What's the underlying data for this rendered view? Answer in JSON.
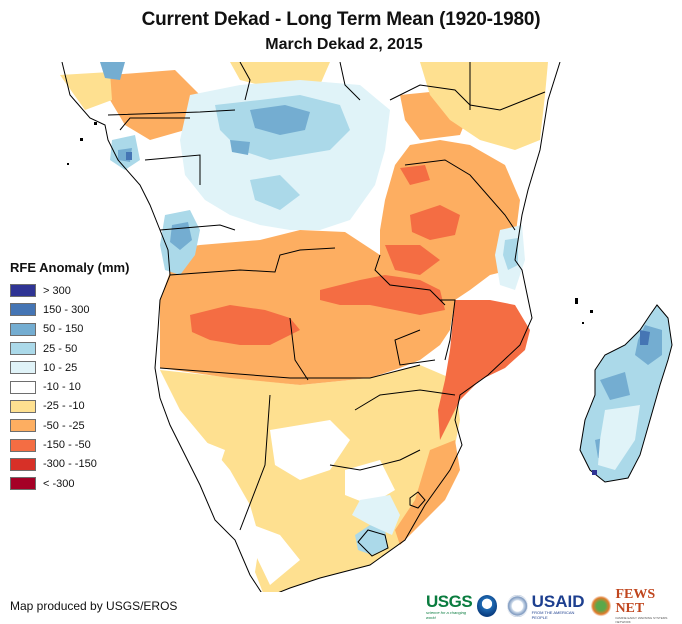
{
  "header": {
    "title": "Current Dekad - Long Term Mean (1920-1980)",
    "subtitle": "March Dekad 2, 2015"
  },
  "legend": {
    "title": "RFE Anomaly (mm)",
    "items": [
      {
        "label": "> 300",
        "color": "#2f3494"
      },
      {
        "label": "150 - 300",
        "color": "#4575b4"
      },
      {
        "label": "50 - 150",
        "color": "#74add1"
      },
      {
        "label": "25 - 50",
        "color": "#abd9e9"
      },
      {
        "label": "10 - 25",
        "color": "#e0f3f8"
      },
      {
        "label": "-10 - 10",
        "color": "#ffffff"
      },
      {
        "label": "-25 - -10",
        "color": "#fee090"
      },
      {
        "label": "-50 - -25",
        "color": "#fdae61"
      },
      {
        "label": "-150 - -50",
        "color": "#f46d43"
      },
      {
        "label": "-300 - -150",
        "color": "#d73027"
      },
      {
        "label": "< -300",
        "color": "#a50026"
      }
    ]
  },
  "footer": {
    "credit": "Map produced by USGS/EROS",
    "logos": [
      {
        "name": "USGS",
        "tagline": "science for a changing world"
      },
      {
        "name": "NOAA"
      },
      {
        "name": "USAID seal"
      },
      {
        "name": "USAID",
        "tagline": "FROM THE AMERICAN PEOPLE"
      },
      {
        "name": "FEWS NET",
        "tagline": "FAMINE EARLY WARNING SYSTEMS NETWORK"
      }
    ]
  },
  "map": {
    "region": "Southern Africa",
    "variable": "RFE Anomaly (mm)"
  }
}
